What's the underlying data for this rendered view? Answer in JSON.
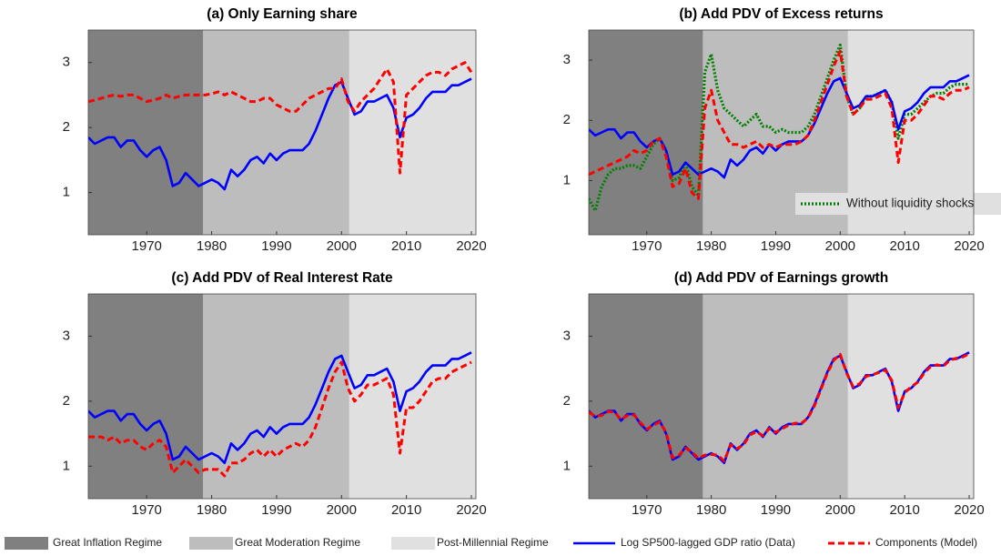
{
  "regimes": [
    {
      "name": "Great Inflation Regime",
      "color": "#808080",
      "start": 1961,
      "end": 1978.7
    },
    {
      "name": "Great Moderation Regime",
      "color": "#bdbdbd",
      "start": 1978.7,
      "end": 2001.2
    },
    {
      "name": "Post-Millennial Regime",
      "color": "#e0e0e0",
      "start": 2001.2,
      "end": 2020.7
    }
  ],
  "chart_data": [
    {
      "type": "line",
      "title": "(a) Only Earning share",
      "xlim": [
        1961,
        2020.7
      ],
      "ylim": [
        0.35,
        3.5
      ],
      "xticks": [
        1970,
        1980,
        1990,
        2000,
        2010,
        2020
      ],
      "yticks": [
        1,
        2,
        3
      ],
      "x": [
        1961,
        1962,
        1963,
        1964,
        1965,
        1966,
        1967,
        1968,
        1969,
        1970,
        1971,
        1972,
        1973,
        1974,
        1975,
        1976,
        1977,
        1978,
        1979,
        1980,
        1981,
        1982,
        1983,
        1984,
        1985,
        1986,
        1987,
        1988,
        1989,
        1990,
        1991,
        1992,
        1993,
        1994,
        1995,
        1996,
        1997,
        1998,
        1999,
        2000,
        2001,
        2002,
        2003,
        2004,
        2005,
        2006,
        2007,
        2008,
        2009,
        2010,
        2011,
        2012,
        2013,
        2014,
        2015,
        2016,
        2017,
        2018,
        2019,
        2020
      ],
      "series": [
        {
          "name": "Log SP500-lagged GDP ratio (Data)",
          "color": "#0000ff",
          "linestyle": "solid",
          "values": [
            1.85,
            1.75,
            1.8,
            1.85,
            1.85,
            1.7,
            1.8,
            1.8,
            1.65,
            1.55,
            1.65,
            1.7,
            1.5,
            1.1,
            1.15,
            1.3,
            1.2,
            1.1,
            1.15,
            1.2,
            1.15,
            1.05,
            1.35,
            1.25,
            1.35,
            1.5,
            1.55,
            1.45,
            1.6,
            1.5,
            1.6,
            1.65,
            1.65,
            1.65,
            1.75,
            1.95,
            2.2,
            2.45,
            2.65,
            2.7,
            2.45,
            2.2,
            2.25,
            2.4,
            2.4,
            2.45,
            2.5,
            2.3,
            1.85,
            2.15,
            2.2,
            2.3,
            2.45,
            2.55,
            2.55,
            2.55,
            2.65,
            2.65,
            2.7,
            2.75
          ]
        },
        {
          "name": "Components (Model)",
          "color": "#ff0000",
          "linestyle": "dashed",
          "values": [
            2.4,
            2.42,
            2.45,
            2.48,
            2.5,
            2.48,
            2.5,
            2.5,
            2.45,
            2.4,
            2.42,
            2.45,
            2.5,
            2.45,
            2.48,
            2.5,
            2.5,
            2.5,
            2.5,
            2.52,
            2.55,
            2.5,
            2.55,
            2.5,
            2.45,
            2.4,
            2.4,
            2.45,
            2.45,
            2.35,
            2.3,
            2.25,
            2.25,
            2.35,
            2.45,
            2.5,
            2.55,
            2.6,
            2.6,
            2.75,
            2.4,
            2.25,
            2.4,
            2.5,
            2.6,
            2.75,
            2.9,
            2.7,
            1.3,
            2.5,
            2.6,
            2.7,
            2.8,
            2.85,
            2.85,
            2.8,
            2.9,
            2.95,
            3.0,
            2.85
          ]
        }
      ]
    },
    {
      "type": "line",
      "title": "(b) Add PDV of Excess returns",
      "xlim": [
        1961,
        2020.7
      ],
      "ylim": [
        0.1,
        3.5
      ],
      "xticks": [
        1970,
        1980,
        1990,
        2000,
        2010,
        2020
      ],
      "yticks": [
        1,
        2,
        3
      ],
      "x": [
        1961,
        1962,
        1963,
        1964,
        1965,
        1966,
        1967,
        1968,
        1969,
        1970,
        1971,
        1972,
        1973,
        1974,
        1975,
        1976,
        1977,
        1978,
        1979,
        1980,
        1981,
        1982,
        1983,
        1984,
        1985,
        1986,
        1987,
        1988,
        1989,
        1990,
        1991,
        1992,
        1993,
        1994,
        1995,
        1996,
        1997,
        1998,
        1999,
        2000,
        2001,
        2002,
        2003,
        2004,
        2005,
        2006,
        2007,
        2008,
        2009,
        2010,
        2011,
        2012,
        2013,
        2014,
        2015,
        2016,
        2017,
        2018,
        2019,
        2020
      ],
      "series": [
        {
          "name": "Without liquidity shocks",
          "color": "#008000",
          "linestyle": "dotted",
          "values": [
            0.7,
            0.5,
            0.9,
            1.1,
            1.2,
            1.2,
            1.25,
            1.25,
            1.2,
            1.4,
            1.6,
            1.7,
            1.5,
            1.0,
            1.05,
            1.3,
            0.9,
            0.75,
            2.8,
            3.1,
            2.5,
            2.2,
            2.1,
            2.0,
            1.9,
            2.0,
            2.1,
            1.9,
            1.9,
            1.8,
            1.85,
            1.8,
            1.8,
            1.8,
            1.9,
            2.1,
            2.4,
            2.7,
            3.0,
            3.25,
            2.4,
            2.1,
            2.2,
            2.4,
            2.4,
            2.45,
            2.5,
            2.3,
            1.7,
            2.1,
            2.1,
            2.2,
            2.3,
            2.4,
            2.45,
            2.45,
            2.55,
            2.6,
            2.6,
            2.6
          ]
        },
        {
          "color": "#0000ff",
          "linestyle": "solid",
          "values": [
            1.85,
            1.75,
            1.8,
            1.85,
            1.85,
            1.7,
            1.8,
            1.8,
            1.65,
            1.55,
            1.65,
            1.7,
            1.5,
            1.1,
            1.15,
            1.3,
            1.2,
            1.1,
            1.15,
            1.2,
            1.15,
            1.05,
            1.35,
            1.25,
            1.35,
            1.5,
            1.55,
            1.45,
            1.6,
            1.5,
            1.6,
            1.65,
            1.65,
            1.65,
            1.75,
            1.95,
            2.2,
            2.45,
            2.65,
            2.7,
            2.45,
            2.2,
            2.25,
            2.4,
            2.4,
            2.45,
            2.5,
            2.3,
            1.85,
            2.15,
            2.2,
            2.3,
            2.45,
            2.55,
            2.55,
            2.55,
            2.65,
            2.65,
            2.7,
            2.75
          ]
        },
        {
          "color": "#ff0000",
          "linestyle": "dashed",
          "values": [
            1.1,
            1.15,
            1.2,
            1.25,
            1.3,
            1.35,
            1.4,
            1.5,
            1.45,
            1.5,
            1.65,
            1.7,
            1.4,
            0.9,
            0.95,
            1.2,
            0.8,
            0.7,
            2.2,
            2.5,
            2.0,
            1.8,
            1.6,
            1.6,
            1.55,
            1.6,
            1.65,
            1.55,
            1.6,
            1.55,
            1.6,
            1.6,
            1.6,
            1.65,
            1.75,
            2.0,
            2.3,
            2.6,
            2.9,
            3.15,
            2.4,
            2.1,
            2.2,
            2.35,
            2.35,
            2.4,
            2.45,
            2.2,
            1.3,
            2.0,
            2.0,
            2.1,
            2.25,
            2.4,
            2.4,
            2.35,
            2.45,
            2.5,
            2.5,
            2.55
          ]
        }
      ]
    },
    {
      "type": "line",
      "title": "(c) Add PDV of Real Interest Rate",
      "xlim": [
        1961,
        2020.7
      ],
      "ylim": [
        0.5,
        3.65
      ],
      "xticks": [
        1970,
        1980,
        1990,
        2000,
        2010,
        2020
      ],
      "yticks": [
        1,
        2,
        3
      ],
      "x": [
        1961,
        1962,
        1963,
        1964,
        1965,
        1966,
        1967,
        1968,
        1969,
        1970,
        1971,
        1972,
        1973,
        1974,
        1975,
        1976,
        1977,
        1978,
        1979,
        1980,
        1981,
        1982,
        1983,
        1984,
        1985,
        1986,
        1987,
        1988,
        1989,
        1990,
        1991,
        1992,
        1993,
        1994,
        1995,
        1996,
        1997,
        1998,
        1999,
        2000,
        2001,
        2002,
        2003,
        2004,
        2005,
        2006,
        2007,
        2008,
        2009,
        2010,
        2011,
        2012,
        2013,
        2014,
        2015,
        2016,
        2017,
        2018,
        2019,
        2020
      ],
      "series": [
        {
          "color": "#0000ff",
          "linestyle": "solid",
          "values": [
            1.85,
            1.75,
            1.8,
            1.85,
            1.85,
            1.7,
            1.8,
            1.8,
            1.65,
            1.55,
            1.65,
            1.7,
            1.5,
            1.1,
            1.15,
            1.3,
            1.2,
            1.1,
            1.15,
            1.2,
            1.15,
            1.05,
            1.35,
            1.25,
            1.35,
            1.5,
            1.55,
            1.45,
            1.6,
            1.5,
            1.6,
            1.65,
            1.65,
            1.65,
            1.75,
            1.95,
            2.2,
            2.45,
            2.65,
            2.7,
            2.45,
            2.2,
            2.25,
            2.4,
            2.4,
            2.45,
            2.5,
            2.3,
            1.85,
            2.15,
            2.2,
            2.3,
            2.45,
            2.55,
            2.55,
            2.55,
            2.65,
            2.65,
            2.7,
            2.75
          ]
        },
        {
          "color": "#ff0000",
          "linestyle": "dashed",
          "values": [
            1.45,
            1.45,
            1.45,
            1.4,
            1.45,
            1.35,
            1.4,
            1.4,
            1.3,
            1.25,
            1.35,
            1.4,
            1.3,
            0.9,
            1.0,
            1.1,
            1.0,
            0.9,
            0.95,
            0.95,
            0.95,
            0.85,
            1.05,
            1.05,
            1.1,
            1.2,
            1.25,
            1.15,
            1.25,
            1.15,
            1.25,
            1.3,
            1.35,
            1.3,
            1.4,
            1.6,
            1.9,
            2.2,
            2.45,
            2.6,
            2.2,
            2.0,
            2.1,
            2.25,
            2.25,
            2.3,
            2.35,
            2.1,
            1.2,
            1.9,
            1.9,
            2.0,
            2.15,
            2.3,
            2.35,
            2.35,
            2.45,
            2.5,
            2.55,
            2.6
          ]
        }
      ]
    },
    {
      "type": "line",
      "title": "(d) Add PDV of Earnings growth",
      "xlim": [
        1961,
        2020.7
      ],
      "ylim": [
        0.5,
        3.65
      ],
      "xticks": [
        1970,
        1980,
        1990,
        2000,
        2010,
        2020
      ],
      "yticks": [
        1,
        2,
        3
      ],
      "x": [
        1961,
        1962,
        1963,
        1964,
        1965,
        1966,
        1967,
        1968,
        1969,
        1970,
        1971,
        1972,
        1973,
        1974,
        1975,
        1976,
        1977,
        1978,
        1979,
        1980,
        1981,
        1982,
        1983,
        1984,
        1985,
        1986,
        1987,
        1988,
        1989,
        1990,
        1991,
        1992,
        1993,
        1994,
        1995,
        1996,
        1997,
        1998,
        1999,
        2000,
        2001,
        2002,
        2003,
        2004,
        2005,
        2006,
        2007,
        2008,
        2009,
        2010,
        2011,
        2012,
        2013,
        2014,
        2015,
        2016,
        2017,
        2018,
        2019,
        2020
      ],
      "series": [
        {
          "color": "#0000ff",
          "linestyle": "solid",
          "values": [
            1.85,
            1.75,
            1.8,
            1.85,
            1.85,
            1.7,
            1.8,
            1.8,
            1.65,
            1.55,
            1.65,
            1.7,
            1.5,
            1.1,
            1.15,
            1.3,
            1.2,
            1.1,
            1.15,
            1.2,
            1.15,
            1.05,
            1.35,
            1.25,
            1.35,
            1.5,
            1.55,
            1.45,
            1.6,
            1.5,
            1.6,
            1.65,
            1.65,
            1.65,
            1.75,
            1.95,
            2.2,
            2.45,
            2.65,
            2.7,
            2.45,
            2.2,
            2.25,
            2.4,
            2.4,
            2.45,
            2.5,
            2.3,
            1.85,
            2.15,
            2.2,
            2.3,
            2.45,
            2.55,
            2.55,
            2.55,
            2.65,
            2.65,
            2.7,
            2.75
          ]
        },
        {
          "color": "#ff0000",
          "linestyle": "dashed",
          "values": [
            1.83,
            1.77,
            1.78,
            1.84,
            1.83,
            1.72,
            1.78,
            1.79,
            1.67,
            1.57,
            1.63,
            1.68,
            1.52,
            1.13,
            1.17,
            1.28,
            1.22,
            1.12,
            1.17,
            1.18,
            1.17,
            1.08,
            1.33,
            1.27,
            1.33,
            1.48,
            1.53,
            1.47,
            1.58,
            1.52,
            1.58,
            1.63,
            1.66,
            1.66,
            1.74,
            1.93,
            2.18,
            2.43,
            2.63,
            2.72,
            2.43,
            2.22,
            2.27,
            2.38,
            2.41,
            2.44,
            2.48,
            2.32,
            1.9,
            2.13,
            2.22,
            2.29,
            2.43,
            2.53,
            2.56,
            2.54,
            2.63,
            2.66,
            2.68,
            2.73
          ]
        }
      ]
    }
  ]
}
